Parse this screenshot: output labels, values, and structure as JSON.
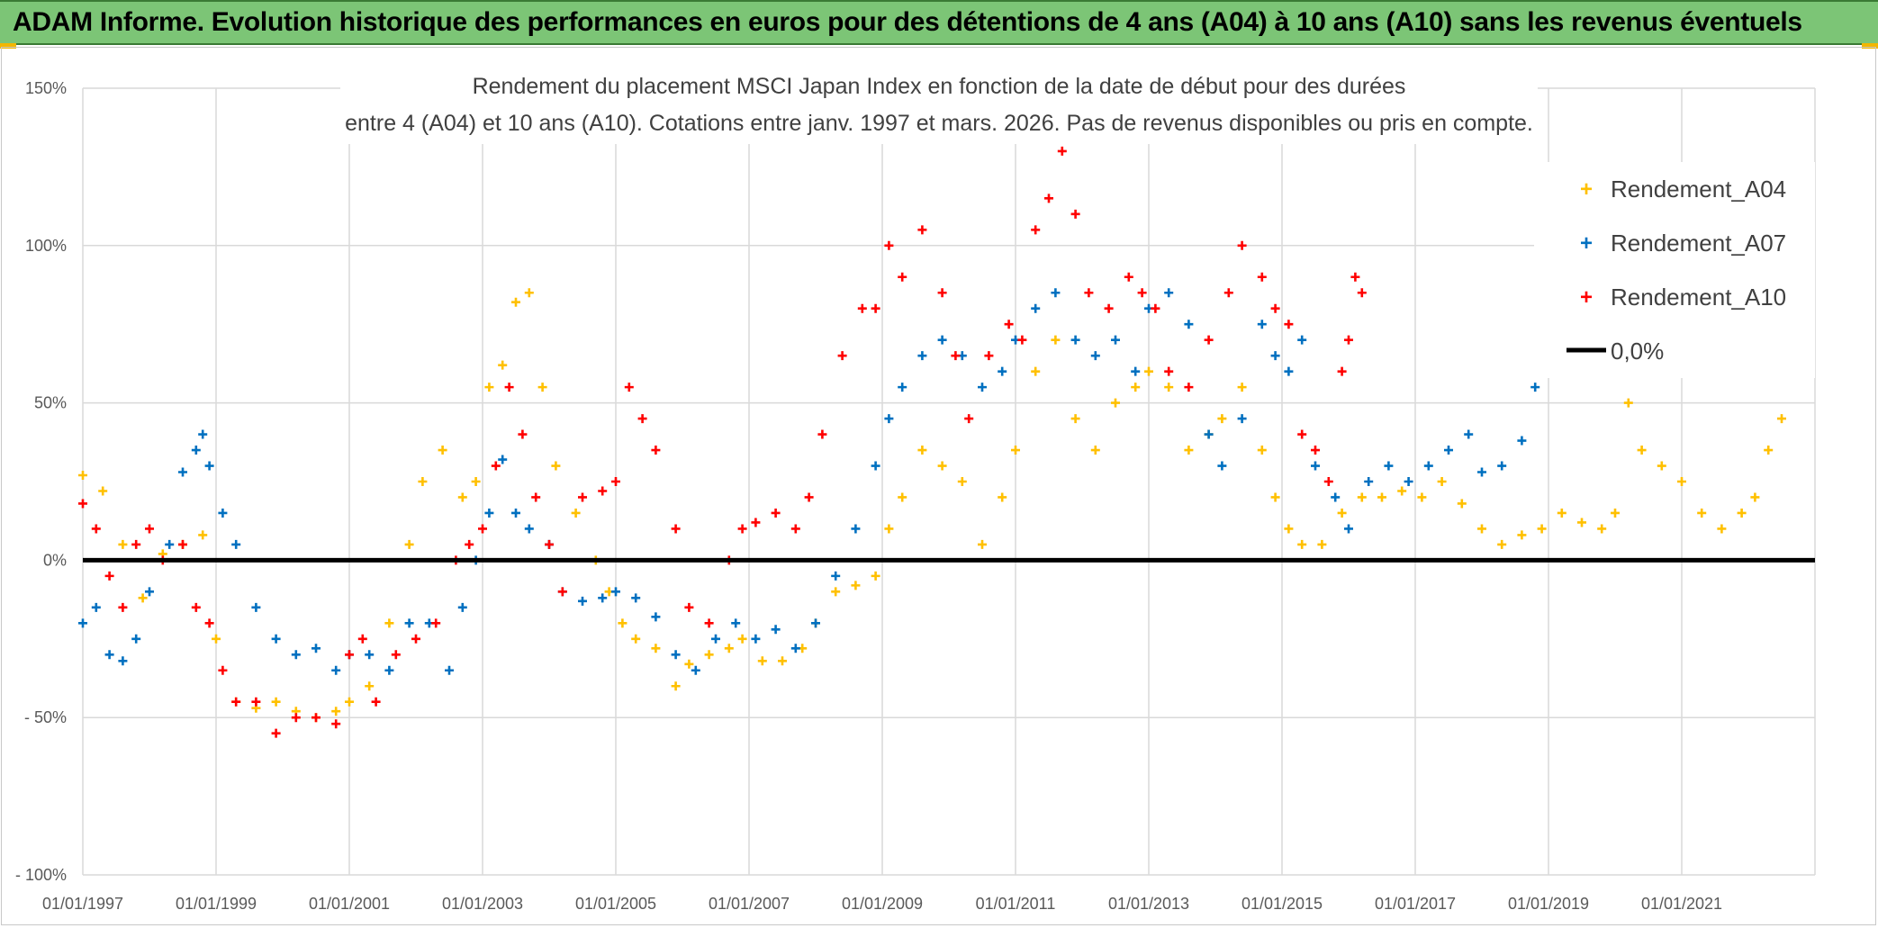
{
  "header": {
    "title": "ADAM Informe. Evolution historique des performances en euros pour des détentions de 4 ans (A04) à 10 ans (A10) sans les revenus éventuels"
  },
  "colors": {
    "banner": "#7cc576",
    "A04": "#ffc000",
    "A07": "#0070c0",
    "A10": "#ff0000",
    "zero_line": "#000000"
  },
  "chart_data": {
    "type": "scatter",
    "title_line1": "Rendement du placement MSCI Japan Index en fonction de la date de début pour des durées",
    "title_line2": "entre 4 (A04) et 10 ans (A10). Cotations entre janv. 1997 et mars. 2026. Pas de revenus disponibles ou pris en compte.",
    "xlabel": "",
    "ylabel": "",
    "xlim": [
      1997.0,
      2023.0
    ],
    "ylim": [
      -100,
      150
    ],
    "y_ticks": [
      {
        "value": 150,
        "label": "150%"
      },
      {
        "value": 100,
        "label": "100%"
      },
      {
        "value": 50,
        "label": "50%"
      },
      {
        "value": 0,
        "label": "0%"
      },
      {
        "value": -50,
        "label": "- 50%"
      },
      {
        "value": -100,
        "label": "- 100%"
      }
    ],
    "x_ticks": [
      {
        "value": 1997,
        "label": "01/01/1997"
      },
      {
        "value": 1999,
        "label": "01/01/1999"
      },
      {
        "value": 2001,
        "label": "01/01/2001"
      },
      {
        "value": 2003,
        "label": "01/01/2003"
      },
      {
        "value": 2005,
        "label": "01/01/2005"
      },
      {
        "value": 2007,
        "label": "01/01/2007"
      },
      {
        "value": 2009,
        "label": "01/01/2009"
      },
      {
        "value": 2011,
        "label": "01/01/2011"
      },
      {
        "value": 2013,
        "label": "01/01/2013"
      },
      {
        "value": 2015,
        "label": "01/01/2015"
      },
      {
        "value": 2017,
        "label": "01/01/2017"
      },
      {
        "value": 2019,
        "label": "01/01/2019"
      },
      {
        "value": 2021,
        "label": "01/01/2021"
      }
    ],
    "grid": true,
    "legend_position": "right",
    "reference_line": {
      "name": "0,0%",
      "value": 0
    },
    "series": [
      {
        "name": "Rendement_A04",
        "color": "#ffc000",
        "x": [
          1997.0,
          1997.3,
          1997.6,
          1997.9,
          1998.2,
          1998.5,
          1998.8,
          1999.0,
          1999.3,
          1999.6,
          1999.9,
          2000.2,
          2000.5,
          2000.8,
          2001.0,
          2001.3,
          2001.6,
          2001.9,
          2002.1,
          2002.4,
          2002.7,
          2002.9,
          2003.1,
          2003.3,
          2003.5,
          2003.7,
          2003.9,
          2004.1,
          2004.4,
          2004.7,
          2004.9,
          2005.1,
          2005.3,
          2005.6,
          2005.9,
          2006.1,
          2006.4,
          2006.7,
          2006.9,
          2007.2,
          2007.5,
          2007.8,
          2008.0,
          2008.3,
          2008.6,
          2008.9,
          2009.1,
          2009.3,
          2009.6,
          2009.9,
          2010.2,
          2010.5,
          2010.8,
          2011.0,
          2011.3,
          2011.6,
          2011.9,
          2012.2,
          2012.5,
          2012.8,
          2013.0,
          2013.3,
          2013.6,
          2013.9,
          2014.1,
          2014.4,
          2014.7,
          2014.9,
          2015.1,
          2015.3,
          2015.6,
          2015.9,
          2016.2,
          2016.5,
          2016.8,
          2017.1,
          2017.4,
          2017.7,
          2018.0,
          2018.3,
          2018.6,
          2018.9,
          2019.2,
          2019.5,
          2019.8,
          2020.0,
          2020.2,
          2020.4,
          2020.7,
          2021.0,
          2021.3,
          2021.6,
          2021.9,
          2022.1,
          2022.3,
          2022.5
        ],
        "values": [
          27,
          22,
          5,
          -12,
          2,
          5,
          8,
          -25,
          -45,
          -47,
          -45,
          -48,
          -50,
          -48,
          -45,
          -40,
          -20,
          5,
          25,
          35,
          20,
          25,
          55,
          62,
          82,
          85,
          55,
          30,
          15,
          0,
          -10,
          -20,
          -25,
          -28,
          -40,
          -33,
          -30,
          -28,
          -25,
          -32,
          -32,
          -28,
          -20,
          -10,
          -8,
          -5,
          10,
          20,
          35,
          30,
          25,
          5,
          20,
          35,
          60,
          70,
          45,
          35,
          50,
          55,
          60,
          55,
          35,
          40,
          45,
          55,
          35,
          20,
          10,
          5,
          5,
          15,
          20,
          20,
          22,
          20,
          25,
          18,
          10,
          5,
          8,
          10,
          15,
          12,
          10,
          15,
          50,
          35,
          30,
          25,
          15,
          10,
          15,
          20,
          35,
          45
        ]
      },
      {
        "name": "Rendement_A07",
        "color": "#0070c0",
        "x": [
          1997.0,
          1997.2,
          1997.4,
          1997.6,
          1997.8,
          1998.0,
          1998.3,
          1998.5,
          1998.7,
          1998.8,
          1998.9,
          1999.1,
          1999.3,
          1999.6,
          1999.9,
          2000.2,
          2000.5,
          2000.8,
          2001.0,
          2001.3,
          2001.6,
          2001.9,
          2002.2,
          2002.5,
          2002.7,
          2002.9,
          2003.1,
          2003.3,
          2003.5,
          2003.7,
          2004.0,
          2004.2,
          2004.5,
          2004.8,
          2005.0,
          2005.3,
          2005.6,
          2005.9,
          2006.2,
          2006.5,
          2006.8,
          2007.1,
          2007.4,
          2007.7,
          2008.0,
          2008.3,
          2008.6,
          2008.9,
          2009.1,
          2009.3,
          2009.6,
          2009.9,
          2010.2,
          2010.5,
          2010.8,
          2011.0,
          2011.3,
          2011.6,
          2011.9,
          2012.2,
          2012.5,
          2012.8,
          2013.0,
          2013.3,
          2013.6,
          2013.9,
          2014.1,
          2014.4,
          2014.7,
          2014.9,
          2015.1,
          2015.3,
          2015.5,
          2015.8,
          2016.0,
          2016.3,
          2016.6,
          2016.9,
          2017.2,
          2017.5,
          2017.8,
          2018.0,
          2018.3,
          2018.6,
          2018.8
        ],
        "values": [
          -20,
          -15,
          -30,
          -32,
          -25,
          -10,
          5,
          28,
          35,
          40,
          30,
          15,
          5,
          -15,
          -25,
          -30,
          -28,
          -35,
          -30,
          -30,
          -35,
          -20,
          -20,
          -35,
          -15,
          0,
          15,
          32,
          15,
          10,
          5,
          -10,
          -13,
          -12,
          -10,
          -12,
          -18,
          -30,
          -35,
          -25,
          -20,
          -25,
          -22,
          -28,
          -20,
          -5,
          10,
          30,
          45,
          55,
          65,
          70,
          65,
          55,
          60,
          70,
          80,
          85,
          70,
          65,
          70,
          60,
          80,
          85,
          75,
          40,
          30,
          45,
          75,
          65,
          60,
          70,
          30,
          20,
          10,
          25,
          30,
          25,
          30,
          35,
          40,
          28,
          30,
          38,
          55
        ]
      },
      {
        "name": "Rendement_A10",
        "color": "#ff0000",
        "x": [
          1997.0,
          1997.2,
          1997.4,
          1997.6,
          1997.8,
          1998.0,
          1998.2,
          1998.5,
          1998.7,
          1998.9,
          1999.1,
          1999.3,
          1999.6,
          1999.9,
          2000.2,
          2000.5,
          2000.8,
          2001.0,
          2001.2,
          2001.4,
          2001.7,
          2002.0,
          2002.3,
          2002.6,
          2002.8,
          2003.0,
          2003.2,
          2003.4,
          2003.6,
          2003.8,
          2004.0,
          2004.2,
          2004.5,
          2004.8,
          2005.0,
          2005.2,
          2005.4,
          2005.6,
          2005.9,
          2006.1,
          2006.4,
          2006.7,
          2006.9,
          2007.1,
          2007.4,
          2007.7,
          2007.9,
          2008.1,
          2008.4,
          2008.7,
          2008.9,
          2009.1,
          2009.3,
          2009.6,
          2009.9,
          2010.1,
          2010.3,
          2010.6,
          2010.9,
          2011.1,
          2011.3,
          2011.5,
          2011.7,
          2011.9,
          2012.1,
          2012.4,
          2012.7,
          2012.9,
          2013.1,
          2013.3,
          2013.6,
          2013.9,
          2014.2,
          2014.4,
          2014.7,
          2014.9,
          2015.1,
          2015.3,
          2015.5,
          2015.7,
          2015.9,
          2016.0,
          2016.1,
          2016.2
        ],
        "values": [
          18,
          10,
          -5,
          -15,
          5,
          10,
          0,
          5,
          -15,
          -20,
          -35,
          -45,
          -45,
          -55,
          -50,
          -50,
          -52,
          -30,
          -25,
          -45,
          -30,
          -25,
          -20,
          0,
          5,
          10,
          30,
          55,
          40,
          20,
          5,
          -10,
          20,
          22,
          25,
          55,
          45,
          35,
          10,
          -15,
          -20,
          0,
          10,
          12,
          15,
          10,
          20,
          40,
          65,
          80,
          80,
          100,
          90,
          105,
          85,
          65,
          45,
          65,
          75,
          70,
          105,
          115,
          130,
          110,
          85,
          80,
          90,
          85,
          80,
          60,
          55,
          70,
          85,
          100,
          90,
          80,
          75,
          40,
          35,
          25,
          60,
          70,
          90,
          85
        ]
      }
    ]
  }
}
